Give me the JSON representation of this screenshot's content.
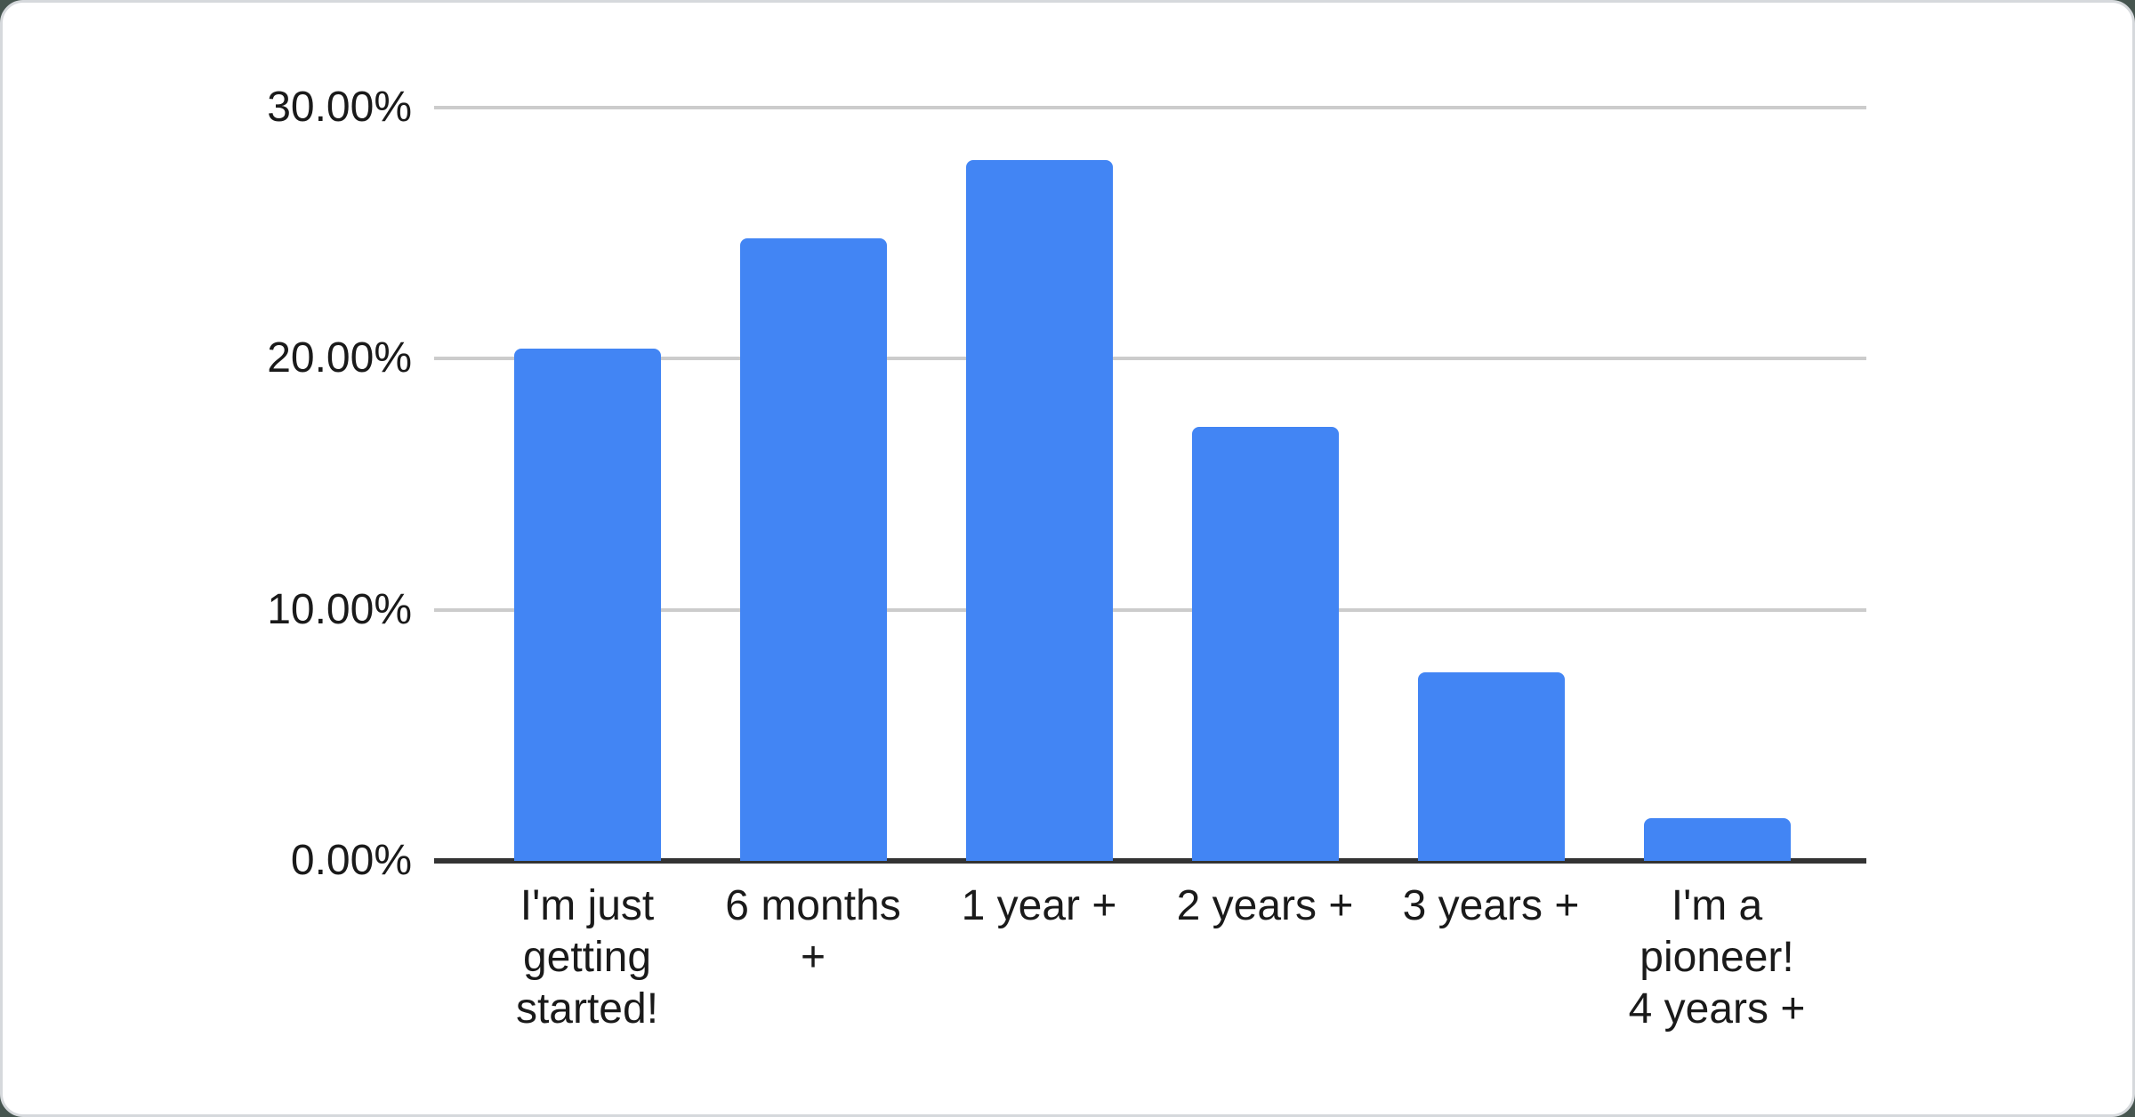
{
  "page": {
    "outer_background": "#46554f",
    "card_background": "#ffffff",
    "card_border_color": "#d6d9dc"
  },
  "chart_data": {
    "type": "bar",
    "categories": [
      "I'm just getting started!",
      "6 months +",
      "1 year +",
      "2 years +",
      "3 years +",
      "I'm a pioneer! 4 years +"
    ],
    "values": [
      20.4,
      24.8,
      27.9,
      17.3,
      7.5,
      1.7
    ],
    "value_unit": "%",
    "series_color": "#4285f4",
    "grid": true,
    "legend": "none",
    "gridline_color": "#cccccc",
    "axis_line_color": "#333333",
    "label_color": "#1a1a1a",
    "y_axis": {
      "range": [
        0,
        30
      ],
      "ticks": [
        {
          "label": "0.00%",
          "value": 0
        },
        {
          "label": "10.00%",
          "value": 10
        },
        {
          "label": "20.00%",
          "value": 20
        },
        {
          "label": "30.00%",
          "value": 30
        }
      ]
    },
    "x_axis": {
      "tick_label_lines": [
        [
          "I'm just",
          "getting",
          "started!"
        ],
        [
          "6 months",
          "+"
        ],
        [
          "1 year +"
        ],
        [
          "2 years +"
        ],
        [
          "3 years +"
        ],
        [
          "I'm a",
          "pioneer!",
          "4 years +"
        ]
      ]
    }
  }
}
